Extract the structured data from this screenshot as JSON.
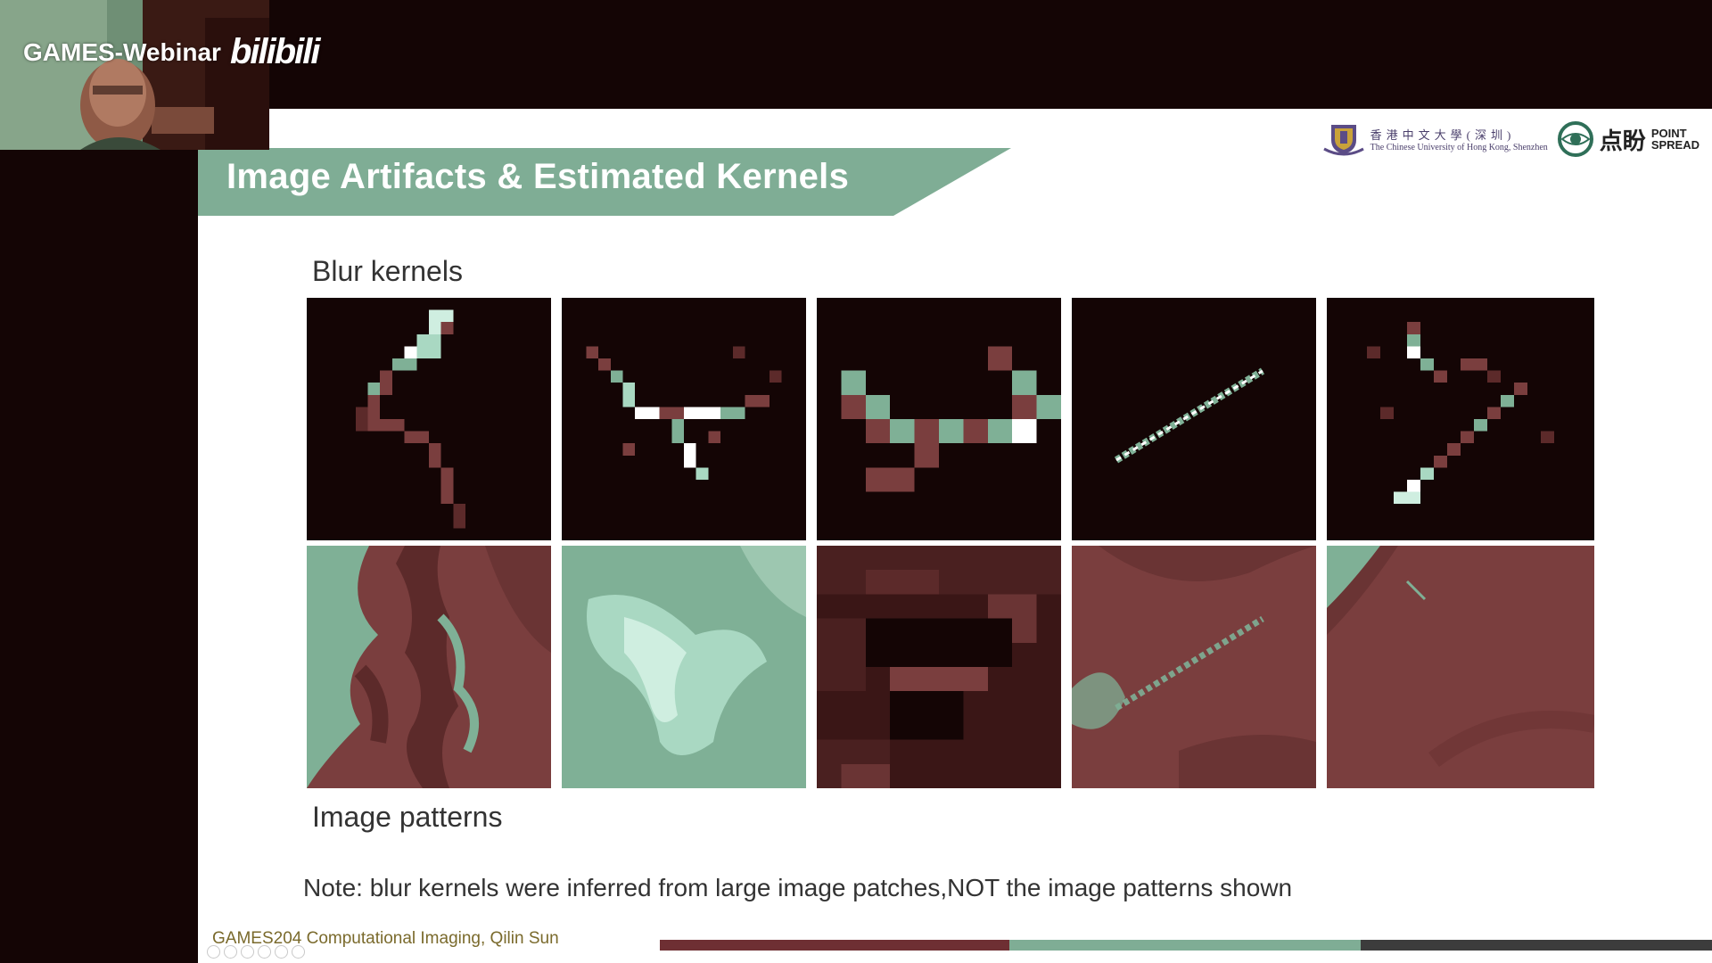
{
  "watermark": {
    "channel": "GAMES-Webinar",
    "site_logo": "bilibili"
  },
  "slide": {
    "title": "Image Artifacts & Estimated Kernels",
    "logos": {
      "cuhk_zh": "香港中文大學(深圳)",
      "cuhk_en": "The Chinese University of Hong Kong, Shenzhen",
      "ps_zh": "点盼",
      "ps_en_line1": "POINT",
      "ps_en_line2": "SPREAD"
    },
    "kernels_label": "Blur kernels",
    "patterns_label": "Image patterns",
    "note": "Note: blur kernels were inferred from large image patches,NOT the image patterns shown",
    "footer": "GAMES204 Computational Imaging, Qilin Sun",
    "kernels": [
      "kernel-1",
      "kernel-2",
      "kernel-3",
      "kernel-4",
      "kernel-5"
    ],
    "patterns": [
      "pattern-1",
      "pattern-2",
      "pattern-3",
      "pattern-4",
      "pattern-5"
    ]
  },
  "colors": {
    "background": "#140505",
    "title_banner": "#7fad95",
    "teal": "#7fb096",
    "maroon": "#7a3e3e",
    "progress_maroon": "#6e2f33",
    "progress_teal": "#7fad95",
    "progress_dark": "#3c3c3c"
  }
}
